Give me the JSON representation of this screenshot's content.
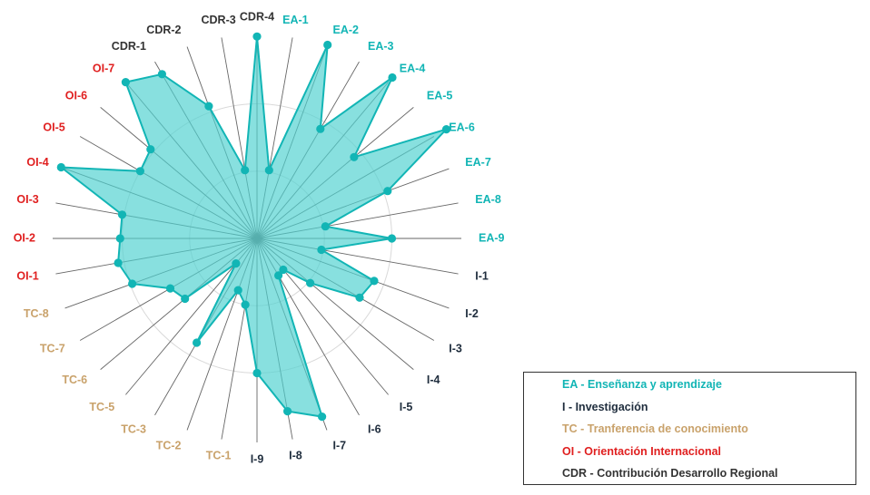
{
  "chart_data": {
    "type": "radar",
    "rlim": [
      0,
      1
    ],
    "grid": "two concentric circles",
    "categories": [
      "CDR-4",
      "EA-1",
      "EA-2",
      "EA-3",
      "EA-4",
      "EA-5",
      "EA-6",
      "EA-7",
      "EA-8",
      "EA-9",
      "I-1",
      "I-2",
      "I-3",
      "I-4",
      "I-5",
      "I-6",
      "I-7",
      "I-8",
      "I-9",
      "TC-1",
      "TC-2",
      "TC-3",
      "TC-5",
      "TC-6",
      "TC-7",
      "TC-8",
      "OI-1",
      "OI-2",
      "OI-3",
      "OI-4",
      "OI-5",
      "OI-6",
      "OI-7",
      "CDR-1",
      "CDR-2",
      "CDR-3"
    ],
    "label_colors": [
      "#333333",
      "#12B5B5",
      "#12B5B5",
      "#12B5B5",
      "#12B5B5",
      "#12B5B5",
      "#12B5B5",
      "#12B5B5",
      "#12B5B5",
      "#12B5B5",
      "#1F2D3D",
      "#1F2D3D",
      "#1F2D3D",
      "#1F2D3D",
      "#1F2D3D",
      "#1F2D3D",
      "#1F2D3D",
      "#1F2D3D",
      "#1F2D3D",
      "#C9A26B",
      "#C9A26B",
      "#C9A26B",
      "#C9A26B",
      "#C9A26B",
      "#C9A26B",
      "#C9A26B",
      "#E02020",
      "#E02020",
      "#E02020",
      "#E02020",
      "#E02020",
      "#E02020",
      "#E02020",
      "#333333",
      "#333333",
      "#333333"
    ],
    "values": [
      0.99,
      0.34,
      1.01,
      0.62,
      1.03,
      0.62,
      1.07,
      0.68,
      0.34,
      0.66,
      0.32,
      0.61,
      0.58,
      0.34,
      0.2,
      0.21,
      0.93,
      0.86,
      0.66,
      0.33,
      0.27,
      0.59,
      0.16,
      0.46,
      0.49,
      0.65,
      0.69,
      0.67,
      0.67,
      1.02,
      0.66,
      0.68,
      1.0,
      0.93,
      0.69,
      0.34
    ]
  },
  "legend": [
    {
      "text": "EA - Enseñanza y aprendizaje",
      "color": "#12B5B5"
    },
    {
      "text": "I - Investigación",
      "color": "#1F2D3D"
    },
    {
      "text": "TC - Tranferencia de conocimiento",
      "color": "#C9A26B"
    },
    {
      "text": "OI - Orientación Internacional",
      "color": "#E02020"
    },
    {
      "text": "CDR - Contribución Desarrollo Regional",
      "color": "#333333"
    }
  ],
  "colors": {
    "fill": "#4FD1D0",
    "stroke": "#12B5B5",
    "point": "#12B5B5",
    "grid": "#D9D9D9",
    "spoke": "#666666"
  }
}
